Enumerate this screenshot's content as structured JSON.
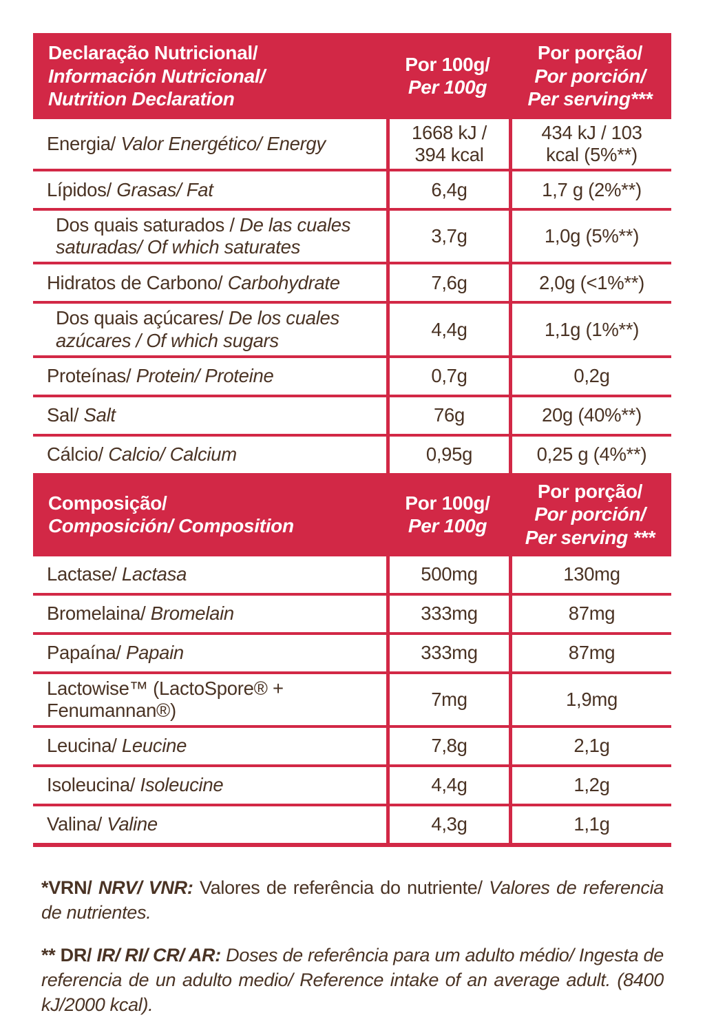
{
  "colors": {
    "accent": "#D22846",
    "text": "#4A3324",
    "header_text": "#FFFFFF",
    "background": "#FFFFFF"
  },
  "declaration": {
    "header": {
      "title_line1": "Declaração Nutricional/",
      "title_line2": "Información Nutricional/",
      "title_line3": "Nutrition Declaration",
      "per100_line1": "Por 100g/",
      "per100_line2": "Per 100g",
      "serving_line1": "Por porção/",
      "serving_line2": "Por porción/",
      "serving_line3": "Per serving***"
    },
    "rows": [
      {
        "pt": "Energia/",
        "rest": " Valor Energético/ Energy",
        "per100g": "1668 kJ / 394 kcal",
        "serving": "434 kJ / 103 kcal (5%**)"
      },
      {
        "pt": "Lípidos/",
        "rest": " Grasas/ Fat",
        "per100g": "6,4g",
        "serving": "1,7 g (2%**)"
      },
      {
        "pt": "Dos quais saturados / ",
        "rest": "De las cuales saturadas/ Of which saturates",
        "per100g": "3,7g",
        "serving": "1,0g (5%**)"
      },
      {
        "pt": "Hidratos de Carbono/",
        "rest": " Carbohydrate",
        "per100g": "7,6g",
        "serving": "2,0g (<1%**)"
      },
      {
        "pt": "Dos quais açúcares/",
        "rest": " De los cuales azúcares / Of which sugars",
        "per100g": "4,4g",
        "serving": "1,1g (1%**)"
      },
      {
        "pt": "Proteínas/",
        "rest": " Protein/ Proteine",
        "per100g": "0,7g",
        "serving": "0,2g"
      },
      {
        "pt": "Sal/",
        "rest": " Salt",
        "per100g": "76g",
        "serving": "20g (40%**)"
      },
      {
        "pt": "Cálcio/",
        "rest": " Calcio/ Calcium",
        "per100g": "0,95g",
        "serving": "0,25 g (4%**)"
      }
    ]
  },
  "composition": {
    "header": {
      "title_line1": "Composição/",
      "title_line2": "Composición/ Composition",
      "per100_line1": "Por 100g/",
      "per100_line2": "Per 100g",
      "serving_line1": "Por porção/",
      "serving_line2": "Por porción/",
      "serving_line3": "Per serving ***"
    },
    "rows": [
      {
        "pt": "Lactase/",
        "rest": " Lactasa",
        "per100g": "500mg",
        "serving": "130mg"
      },
      {
        "pt": "Bromelaina/",
        "rest": " Bromelain",
        "per100g": "333mg",
        "serving": "87mg"
      },
      {
        "pt": "Papaína/",
        "rest": " Papain",
        "per100g": "333mg",
        "serving": "87mg"
      },
      {
        "pt": "Lactowise™ (LactoSpore® + Fenumannan®)",
        "rest": "",
        "per100g": "7mg",
        "serving": "1,9mg"
      },
      {
        "pt": "Leucina/",
        "rest": " Leucine",
        "per100g": "7,8g",
        "serving": "2,1g"
      },
      {
        "pt": "Isoleucina/",
        "rest": " Isoleucine",
        "per100g": "4,4g",
        "serving": "1,2g"
      },
      {
        "pt": "Valina/",
        "rest": " Valine",
        "per100g": "4,3g",
        "serving": "1,1g"
      }
    ]
  },
  "footnotes": [
    {
      "bold": "*VRN/",
      "bold_italic": " NRV/ VNR:",
      "regular": " Valores de referência do nutriente/",
      "italic": " Valores de referencia de nutrientes."
    },
    {
      "bold": "** DR/",
      "bold_italic": " IR/ RI/ CR/ AR:",
      "regular": "",
      "italic": " Doses de referência para um adulto médio/ Ingesta de referencia de un adulto medio/ Reference intake of an average adult. (8400 kJ/2000 kcal)."
    }
  ]
}
